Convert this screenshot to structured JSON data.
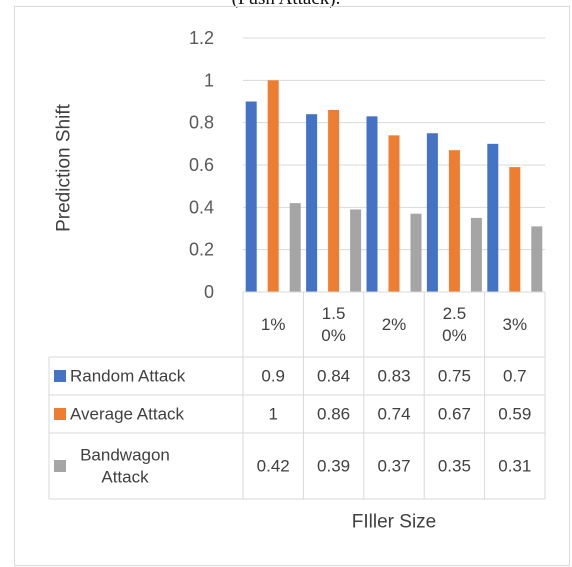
{
  "partial_title": "(Push Attack).",
  "chart_data": {
    "type": "bar",
    "title": "",
    "xlabel": "FIller Size",
    "ylabel": "Prediction Shift",
    "ylim": [
      0,
      1.2
    ],
    "yticks": [
      "0",
      "0.2",
      "0.4",
      "0.6",
      "0.8",
      "1",
      "1.2"
    ],
    "categories": [
      [
        "1%"
      ],
      [
        "1.5",
        "0%"
      ],
      [
        "2%"
      ],
      [
        "2.5",
        "0%"
      ],
      [
        "3%"
      ]
    ],
    "series": [
      {
        "name": "Random Attack",
        "name_lines": [
          "Random Attack"
        ],
        "color": "#4472c4",
        "values": [
          0.9,
          0.84,
          0.83,
          0.75,
          0.7
        ],
        "labels": [
          "0.9",
          "0.84",
          "0.83",
          "0.75",
          "0.7"
        ]
      },
      {
        "name": "Average Attack",
        "name_lines": [
          "Average Attack"
        ],
        "color": "#ed7d31",
        "values": [
          1,
          0.86,
          0.74,
          0.67,
          0.59
        ],
        "labels": [
          "1",
          "0.86",
          "0.74",
          "0.67",
          "0.59"
        ]
      },
      {
        "name": "Bandwagon Attack",
        "name_lines": [
          "Bandwagon",
          "Attack"
        ],
        "color": "#a5a5a5",
        "values": [
          0.42,
          0.39,
          0.37,
          0.35,
          0.31
        ],
        "labels": [
          "0.42",
          "0.39",
          "0.37",
          "0.35",
          "0.31"
        ]
      }
    ],
    "grid": true,
    "legend": "data-table"
  }
}
